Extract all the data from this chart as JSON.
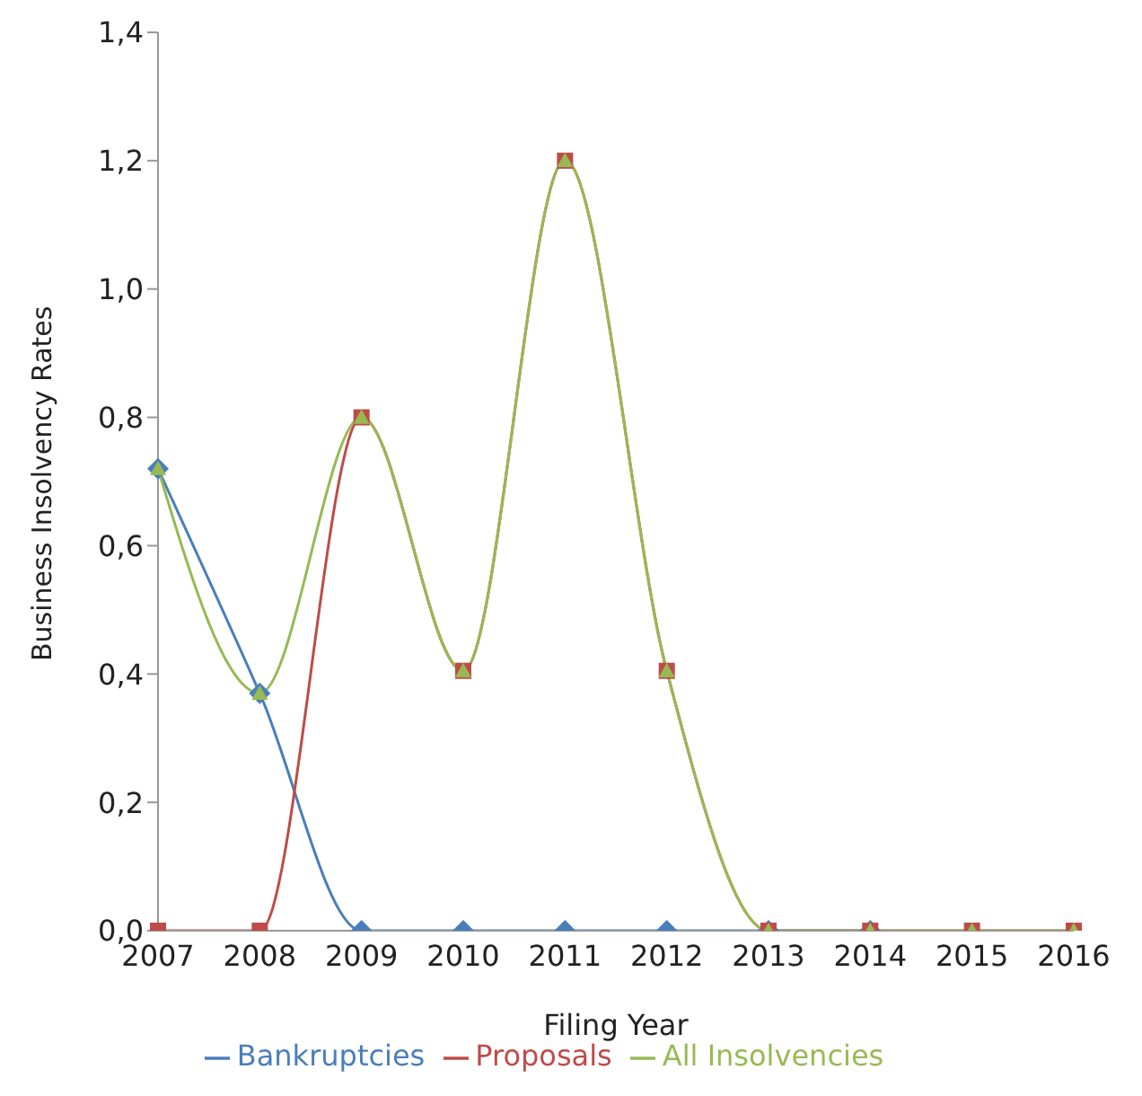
{
  "chart_data": {
    "type": "line",
    "xlabel": "Filing Year",
    "ylabel": "Business Insolvency Rates",
    "categories": [
      "2007",
      "2008",
      "2009",
      "2010",
      "2011",
      "2012",
      "2013",
      "2014",
      "2015",
      "2016"
    ],
    "series": [
      {
        "name": "Bankruptcies",
        "color": "#4a7ebb",
        "marker": "diamond",
        "values": [
          0.72,
          0.37,
          0,
          0,
          0,
          0,
          0,
          0,
          null,
          null
        ]
      },
      {
        "name": "Proposals",
        "color": "#be4b48",
        "marker": "square",
        "values": [
          0,
          0,
          0.8,
          0.405,
          1.2,
          0.405,
          0,
          0,
          0,
          0
        ]
      },
      {
        "name": "All Insolvencies",
        "color": "#98b954",
        "marker": "triangle",
        "values": [
          0.72,
          0.37,
          0.8,
          0.405,
          1.2,
          0.405,
          0,
          0,
          0,
          0
        ]
      }
    ],
    "ylim": [
      0,
      1.4
    ],
    "yticks": [
      {
        "value": 0,
        "label": "0,0"
      },
      {
        "value": 0.2,
        "label": "0,2"
      },
      {
        "value": 0.4,
        "label": "0,4"
      },
      {
        "value": 0.6,
        "label": "0,6"
      },
      {
        "value": 0.8,
        "label": "0,8"
      },
      {
        "value": 1.0,
        "label": "1,0"
      },
      {
        "value": 1.2,
        "label": "1,2"
      },
      {
        "value": 1.4,
        "label": "1,4"
      }
    ],
    "grid": false,
    "legend": "bottom"
  }
}
